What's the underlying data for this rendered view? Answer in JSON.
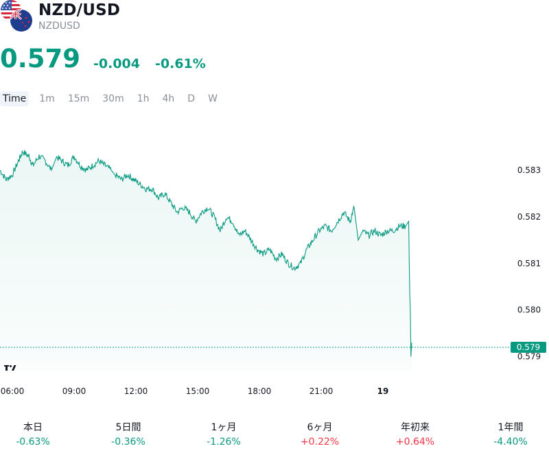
{
  "header": {
    "symbol_title": "NZD/USD",
    "symbol_code": "NZDUSD",
    "price": "0.579",
    "change": "-0.004",
    "change_pct": "-0.61%"
  },
  "flags": [
    "us-flag-icon",
    "nz-flag-icon"
  ],
  "timeframes": [
    "Time",
    "1m",
    "15m",
    "30m",
    "1h",
    "4h",
    "D",
    "W"
  ],
  "selected_timeframe": "Time",
  "colors": {
    "up": "#089981",
    "down": "#f23645",
    "line": "#089981"
  },
  "chart_data": {
    "type": "area",
    "x_ticks": [
      "06:00",
      "09:00",
      "12:00",
      "15:00",
      "18:00",
      "21:00",
      "19"
    ],
    "x_tick_hours": [
      6,
      9,
      12,
      15,
      18,
      21,
      24
    ],
    "x_range_hours": [
      5.4,
      27
    ],
    "y_ticks": [
      "0.583",
      "0.582",
      "0.581",
      "0.580",
      "0.579"
    ],
    "y_tick_values": [
      0.583,
      0.582,
      0.581,
      0.58,
      0.579
    ],
    "y_range": [
      0.5787,
      0.584
    ],
    "last_price_label": "0.579",
    "last_price_value": 0.5792,
    "grid": false,
    "x": [
      5.4,
      5.7,
      6.0,
      6.3,
      6.5,
      6.8,
      7.0,
      7.3,
      7.6,
      7.9,
      8.1,
      8.4,
      8.7,
      9.0,
      9.3,
      9.6,
      9.9,
      10.2,
      10.5,
      10.8,
      11.0,
      11.3,
      11.6,
      11.9,
      12.2,
      12.5,
      12.8,
      13.1,
      13.4,
      13.7,
      14.0,
      14.3,
      14.6,
      14.9,
      15.2,
      15.5,
      15.8,
      16.1,
      16.4,
      16.7,
      17.0,
      17.3,
      17.6,
      17.9,
      18.2,
      18.5,
      18.8,
      19.1,
      19.4,
      19.7,
      20.0,
      20.3,
      20.6,
      20.9,
      21.2,
      21.5,
      21.8,
      22.1,
      22.4,
      22.6,
      22.8,
      23.0,
      23.3,
      23.6,
      23.9,
      24.2,
      24.5,
      24.8,
      25.1,
      25.25,
      25.3,
      25.33,
      25.36,
      25.4
    ],
    "y": [
      0.583,
      0.5828,
      0.5829,
      0.5832,
      0.5834,
      0.5833,
      0.5831,
      0.5833,
      0.5832,
      0.583,
      0.5833,
      0.5832,
      0.5831,
      0.5833,
      0.5831,
      0.583,
      0.5831,
      0.5832,
      0.5831,
      0.583,
      0.5829,
      0.5828,
      0.5829,
      0.5828,
      0.5827,
      0.5826,
      0.5826,
      0.5824,
      0.5825,
      0.5823,
      0.5821,
      0.5822,
      0.5821,
      0.5819,
      0.5821,
      0.5822,
      0.582,
      0.5817,
      0.582,
      0.5819,
      0.5816,
      0.5817,
      0.5815,
      0.5813,
      0.5812,
      0.5813,
      0.5811,
      0.5812,
      0.581,
      0.5809,
      0.581,
      0.5813,
      0.5815,
      0.5817,
      0.5818,
      0.5817,
      0.5819,
      0.5821,
      0.5819,
      0.5822,
      0.5815,
      0.5817,
      0.5816,
      0.5817,
      0.5816,
      0.5817,
      0.5817,
      0.5818,
      0.5818,
      0.5819,
      0.5804,
      0.58,
      0.579,
      0.5793
    ]
  },
  "performance": [
    {
      "label": "本日",
      "value": "-0.63%",
      "positive": false
    },
    {
      "label": "5日間",
      "value": "-0.36%",
      "positive": false
    },
    {
      "label": "1ヶ月",
      "value": "-1.26%",
      "positive": false
    },
    {
      "label": "6ヶ月",
      "value": "+0.22%",
      "positive": true
    },
    {
      "label": "年初来",
      "value": "+0.64%",
      "positive": true
    },
    {
      "label": "1年間",
      "value": "-4.40%",
      "positive": false
    }
  ]
}
